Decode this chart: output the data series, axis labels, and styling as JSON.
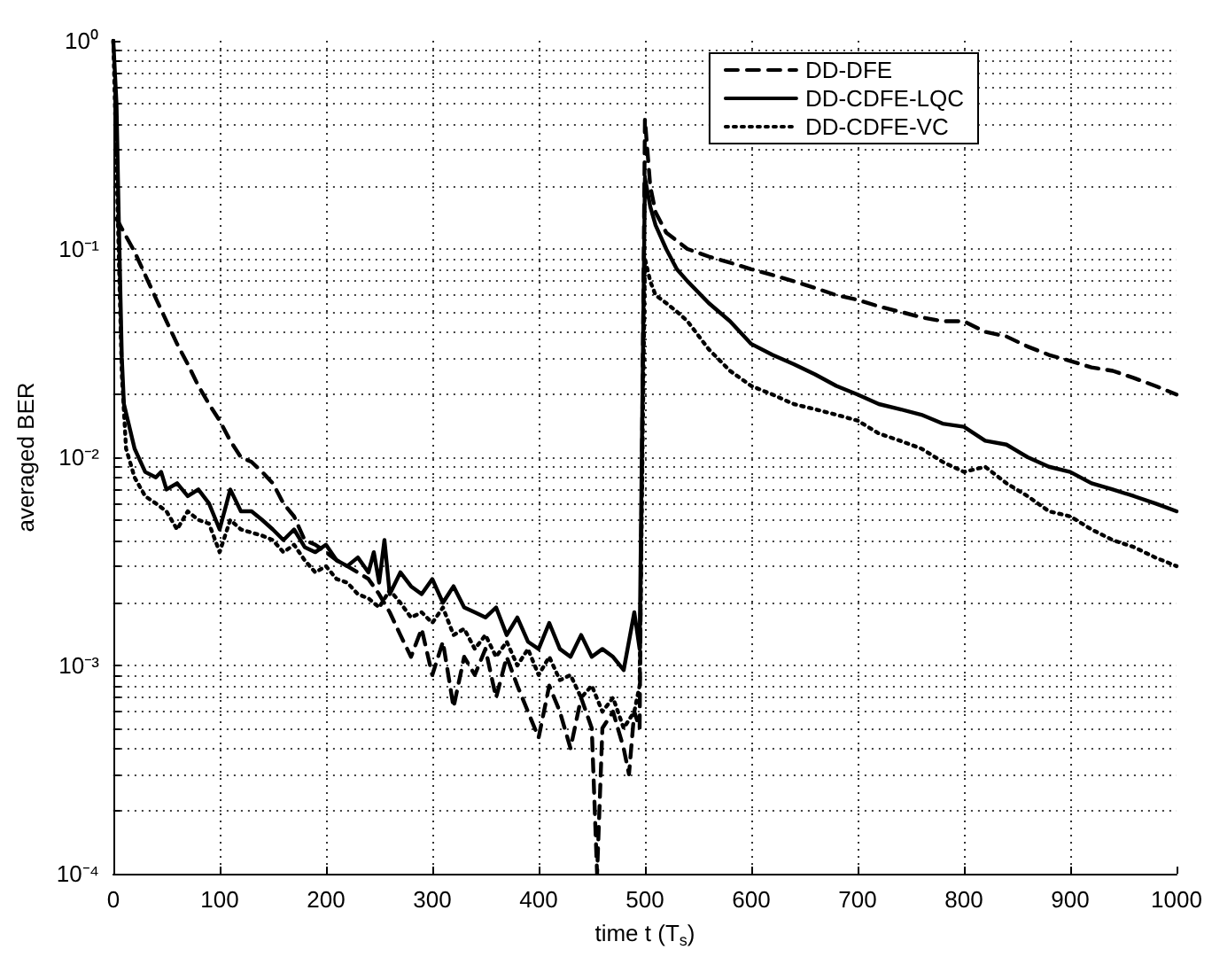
{
  "chart_data": {
    "type": "line",
    "xlabel": "time t (T$_{s}$)",
    "ylabel": "averaged BER",
    "log": "y",
    "grid": true,
    "legend": "top right",
    "marker": "none",
    "xlim": [
      0,
      1000
    ],
    "xticks": [
      0,
      100,
      200,
      300,
      400,
      500,
      600,
      700,
      800,
      900,
      1000
    ],
    "ylim": [
      0.0001,
      1
    ],
    "yticks": [
      {
        "value": 0.0001,
        "label": "10⁻⁴"
      },
      {
        "value": 0.0002,
        "label": null
      },
      {
        "value": 0.0003,
        "label": null
      },
      {
        "value": 0.0004,
        "label": null
      },
      {
        "value": 0.0005,
        "label": null
      },
      {
        "value": 0.0006,
        "label": null
      },
      {
        "value": 0.0007,
        "label": null
      },
      {
        "value": 0.0008,
        "label": null
      },
      {
        "value": 0.0009,
        "label": null
      },
      {
        "value": 0.001,
        "label": "10⁻³"
      },
      {
        "value": 0.002,
        "label": null
      },
      {
        "value": 0.003,
        "label": null
      },
      {
        "value": 0.004,
        "label": null
      },
      {
        "value": 0.005,
        "label": null
      },
      {
        "value": 0.006,
        "label": null
      },
      {
        "value": 0.007,
        "label": null
      },
      {
        "value": 0.008,
        "label": null
      },
      {
        "value": 0.009,
        "label": null
      },
      {
        "value": 0.01,
        "label": "10⁻²"
      },
      {
        "value": 0.02,
        "label": null
      },
      {
        "value": 0.03,
        "label": null
      },
      {
        "value": 0.04,
        "label": null
      },
      {
        "value": 0.05,
        "label": null
      },
      {
        "value": 0.06,
        "label": null
      },
      {
        "value": 0.07,
        "label": null
      },
      {
        "value": 0.08,
        "label": null
      },
      {
        "value": 0.09,
        "label": null
      },
      {
        "value": 0.1,
        "label": "10⁻¹"
      },
      {
        "value": 0.2,
        "label": null
      },
      {
        "value": 0.3,
        "label": null
      },
      {
        "value": 0.4,
        "label": null
      },
      {
        "value": 0.5,
        "label": null
      },
      {
        "value": 0.6,
        "label": null
      },
      {
        "value": 0.7,
        "label": null
      },
      {
        "value": 0.8,
        "label": null
      },
      {
        "value": 0.9,
        "label": null
      },
      {
        "value": 1,
        "label": "10⁰"
      }
    ],
    "series": [
      {
        "name": "DD-DFE",
        "color": "#000000",
        "line_style": "dashed",
        "x": [
          3,
          10,
          20,
          30,
          40,
          50,
          60,
          70,
          80,
          90,
          100,
          110,
          120,
          130,
          140,
          150,
          160,
          170,
          180,
          190,
          200,
          210,
          220,
          230,
          240,
          250,
          260,
          270,
          280,
          290,
          300,
          310,
          320,
          330,
          340,
          350,
          360,
          370,
          380,
          390,
          400,
          410,
          420,
          430,
          440,
          450,
          455,
          460,
          470,
          480,
          485,
          490,
          495,
          500,
          505,
          510,
          520,
          540,
          560,
          580,
          600,
          620,
          640,
          660,
          680,
          700,
          720,
          740,
          760,
          780,
          800,
          820,
          840,
          860,
          880,
          900,
          920,
          940,
          960,
          980,
          1000
        ],
        "values": [
          0.14,
          0.12,
          0.097,
          0.075,
          0.058,
          0.045,
          0.035,
          0.028,
          0.022,
          0.018,
          0.015,
          0.012,
          0.01,
          0.0095,
          0.0085,
          0.0075,
          0.006,
          0.0052,
          0.004,
          0.0038,
          0.0035,
          0.0032,
          0.003,
          0.0028,
          0.0026,
          0.0022,
          0.0018,
          0.0014,
          0.0011,
          0.0015,
          0.0009,
          0.0013,
          0.00063,
          0.0011,
          0.0009,
          0.0012,
          0.0007,
          0.0011,
          0.0008,
          0.0006,
          0.00045,
          0.0008,
          0.0006,
          0.0004,
          0.0007,
          0.0005,
          0.0001,
          0.0005,
          0.0006,
          0.0004,
          0.0003,
          0.0006,
          0.0005,
          0.42,
          0.2,
          0.15,
          0.12,
          0.1,
          0.092,
          0.086,
          0.08,
          0.075,
          0.07,
          0.065,
          0.06,
          0.057,
          0.053,
          0.05,
          0.047,
          0.045,
          0.045,
          0.04,
          0.038,
          0.034,
          0.031,
          0.029,
          0.027,
          0.026,
          0.024,
          0.022,
          0.02
        ]
      },
      {
        "name": "DD-CDFE-LQC",
        "color": "#000000",
        "line_style": "solid",
        "x": [
          0,
          3,
          5,
          8,
          10,
          20,
          30,
          40,
          45,
          50,
          60,
          70,
          80,
          90,
          100,
          110,
          120,
          130,
          140,
          150,
          160,
          170,
          180,
          190,
          200,
          210,
          220,
          230,
          240,
          245,
          250,
          255,
          260,
          270,
          280,
          290,
          300,
          310,
          320,
          330,
          340,
          350,
          360,
          370,
          380,
          390,
          400,
          410,
          420,
          430,
          440,
          450,
          460,
          470,
          480,
          490,
          495,
          500,
          505,
          510,
          520,
          530,
          540,
          560,
          580,
          600,
          620,
          640,
          660,
          680,
          700,
          720,
          740,
          760,
          780,
          800,
          820,
          840,
          860,
          880,
          900,
          920,
          940,
          960,
          980,
          1000
        ],
        "values": [
          1,
          0.5,
          0.15,
          0.03,
          0.018,
          0.011,
          0.0085,
          0.008,
          0.0085,
          0.007,
          0.0075,
          0.0065,
          0.007,
          0.006,
          0.0045,
          0.007,
          0.0055,
          0.0055,
          0.005,
          0.0045,
          0.004,
          0.0045,
          0.0037,
          0.0035,
          0.0038,
          0.0032,
          0.003,
          0.0033,
          0.0028,
          0.0035,
          0.0025,
          0.004,
          0.0022,
          0.0028,
          0.0024,
          0.0022,
          0.0026,
          0.002,
          0.0024,
          0.0019,
          0.0018,
          0.0017,
          0.0019,
          0.0014,
          0.0017,
          0.0013,
          0.0012,
          0.0016,
          0.0012,
          0.0011,
          0.0014,
          0.0011,
          0.0012,
          0.0011,
          0.00095,
          0.0018,
          0.0012,
          0.22,
          0.16,
          0.13,
          0.1,
          0.08,
          0.07,
          0.055,
          0.045,
          0.035,
          0.031,
          0.028,
          0.025,
          0.022,
          0.02,
          0.018,
          0.017,
          0.016,
          0.0145,
          0.014,
          0.012,
          0.0115,
          0.01,
          0.009,
          0.0085,
          0.0075,
          0.007,
          0.0065,
          0.006,
          0.0055
        ]
      },
      {
        "name": "DD-CDFE-VC",
        "color": "#000000",
        "line_style": "dotted",
        "x": [
          0,
          5,
          8,
          12,
          20,
          30,
          40,
          50,
          60,
          70,
          80,
          90,
          100,
          110,
          120,
          140,
          150,
          160,
          170,
          180,
          190,
          200,
          210,
          220,
          230,
          240,
          250,
          260,
          270,
          280,
          290,
          300,
          310,
          320,
          330,
          340,
          350,
          360,
          370,
          380,
          390,
          400,
          410,
          420,
          430,
          440,
          450,
          460,
          470,
          480,
          490,
          495,
          500,
          505,
          510,
          520,
          530,
          540,
          560,
          580,
          600,
          620,
          640,
          660,
          680,
          700,
          720,
          740,
          760,
          780,
          800,
          820,
          840,
          860,
          880,
          900,
          920,
          940,
          960,
          980,
          1000
        ],
        "values": [
          1,
          0.1,
          0.025,
          0.011,
          0.008,
          0.0065,
          0.006,
          0.0055,
          0.0045,
          0.0055,
          0.005,
          0.0048,
          0.0035,
          0.005,
          0.0045,
          0.0042,
          0.004,
          0.0035,
          0.0038,
          0.0032,
          0.0028,
          0.003,
          0.0026,
          0.0025,
          0.0022,
          0.0021,
          0.0019,
          0.0023,
          0.002,
          0.0017,
          0.0018,
          0.0016,
          0.0019,
          0.0014,
          0.0015,
          0.0012,
          0.0014,
          0.0011,
          0.0013,
          0.001,
          0.0012,
          0.0009,
          0.0011,
          0.00085,
          0.0009,
          0.0007,
          0.0008,
          0.0006,
          0.0007,
          0.0005,
          0.0006,
          0.0008,
          0.09,
          0.07,
          0.06,
          0.055,
          0.05,
          0.045,
          0.033,
          0.026,
          0.022,
          0.02,
          0.018,
          0.017,
          0.016,
          0.015,
          0.013,
          0.012,
          0.011,
          0.0095,
          0.0085,
          0.009,
          0.0075,
          0.0065,
          0.0055,
          0.0052,
          0.0045,
          0.004,
          0.0037,
          0.0033,
          0.003
        ]
      }
    ]
  }
}
